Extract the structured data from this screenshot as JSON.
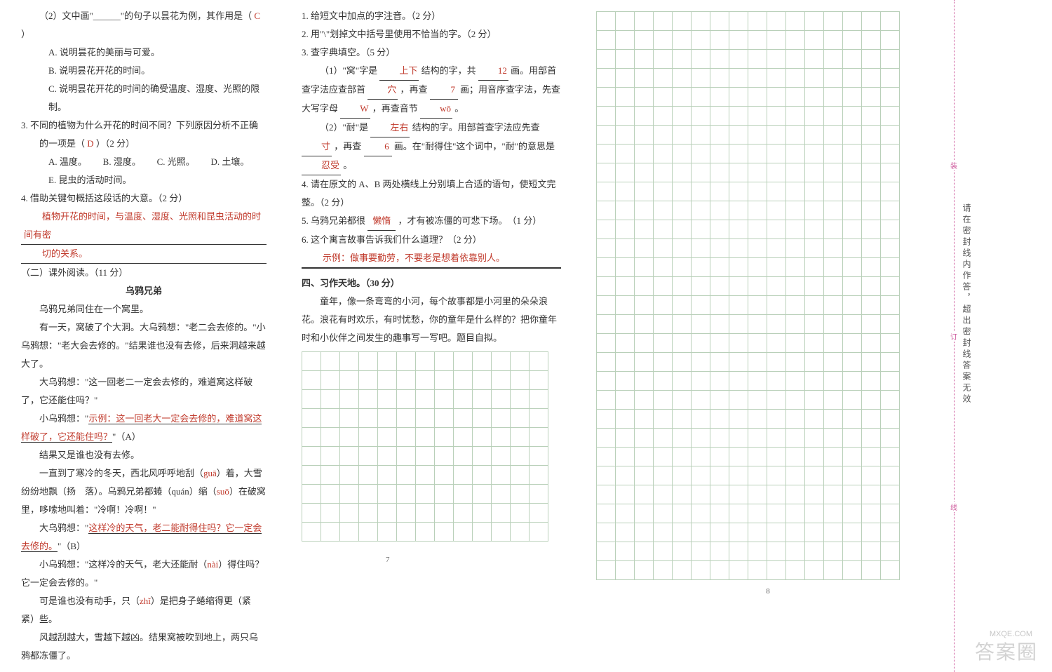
{
  "col1": {
    "q2_stem": "（2）文中画\"______\"的句子以昙花为例，其作用是（",
    "q2_ans": "C",
    "q2_tail": "）",
    "q2_optA": "A. 说明昙花的美丽与可爱。",
    "q2_optB": "B. 说明昙花开花的时间。",
    "q2_optC": "C. 说明昙花开花的时间的确受温度、湿度、光照的限制。",
    "q3_stem1": "3. 不同的植物为什么开花的时间不同？下列原因分析不正确",
    "q3_stem2": "的一项是（",
    "q3_ans": "D",
    "q3_stem3": "）（2 分）",
    "q3_optA": "A. 温度。",
    "q3_optB": "B. 湿度。",
    "q3_optC": "C. 光照。",
    "q3_optD": "D. 土壤。",
    "q3_optE": "E. 昆虫的活动时间。",
    "q4_stem": "4. 借助关键句概括这段话的大意。（2 分）",
    "q4_ans1": "植物开花的时间，与温度、湿度、光照和昆虫活动的时间有密",
    "q4_ans2": "切的关系。",
    "sec2_title": "（二）课外阅读。（11 分）",
    "story_title": "乌鸦兄弟",
    "p1": "乌鸦兄弟同住在一个窝里。",
    "p2": "有一天，窝破了个大洞。大乌鸦想：\"老二会去修的。\"小乌鸦想：\"老大会去修的。\"结果谁也没有去修，后来洞越来越大了。",
    "p3": "大乌鸦想：\"这一回老二一定会去修的，难道窝这样破了，它还能住吗？\"",
    "p4_lead": "小乌鸦想：\"",
    "p4_ans": "示例：这一回老大一定会去修的，难道窝这样破了，它还能住吗？",
    "p4_tail": "\"（A）",
    "p5": "结果又是谁也没有去修。",
    "p6a": "一直到了寒冷的冬天，西北风呼呼地刮（",
    "p6_ans1": "guā",
    "p6b": "）着，大雪纷纷地飘（扬　落）。乌鸦兄弟都蜷（quán）缩（",
    "p6_ans2": "suō",
    "p6c": "）在破窝里，哆嗦地叫着：\"冷啊！冷啊！\"",
    "p7_lead": "大乌鸦想：\"",
    "p7_ans": "这样冷的天气，老二能耐得住吗？它一定会去修的。",
    "p7_tail": "\"（B）",
    "p8a": "小乌鸦想：\"这样冷的天气，老大还能耐（",
    "p8_ans": "nài",
    "p8b": "）得住吗？它一定会去修的。\"",
    "p9a": "可是谁也没有动手，只（",
    "p9_ans": "zhǐ",
    "p9b": "）是把身子蜷缩得更（紧　紧）些。",
    "p10": "风越刮越大，雪越下越凶。结果窝被吹到地上，两只乌鸦都冻僵了。"
  },
  "col2": {
    "q1": "1. 给短文中加点的字注音。（2 分）",
    "q2": "2. 用\"\\\"划掉文中括号里使用不恰当的字。（2 分）",
    "q3_title": "3. 查字典填空。（5 分）",
    "q3_1a": "（1）\"窝\"字是",
    "q3_1_ans1": "上下",
    "q3_1b": "结构的字，共",
    "q3_1_ans2": "12",
    "q3_1c": "画。用部首查字法应查部首",
    "q3_1_ans3": "穴",
    "q3_1d": "，再查",
    "q3_1_ans4": "7",
    "q3_1e": "画；用音序查字法，先查大写字母",
    "q3_1_ans5": "W",
    "q3_1f": "，再查音节",
    "q3_1_ans6": "wō",
    "q3_1g": "。",
    "q3_2a": "（2）\"耐\"是",
    "q3_2_ans1": "左右",
    "q3_2b": "结构的字。用部首查字法应先查",
    "q3_2_ans2": "寸",
    "q3_2c": "，再查",
    "q3_2_ans3": "6",
    "q3_2d": "画。在\"耐得住\"这个词中，\"耐\"的意思是",
    "q3_2_ans4": "忍受",
    "q3_2e": "。",
    "q4": "4. 请在原文的 A、B 两处横线上分别填上合适的语句，使短文完整。（2 分）",
    "q5a": "5. 乌鸦兄弟都很",
    "q5_ans": "懒惰",
    "q5b": "，才有被冻僵的可悲下场。　（1 分）",
    "q6": "6. 这个寓言故事告诉我们什么道理？（2 分）",
    "q6_ans": "示例：做事要勤劳，不要老是想着依靠别人。",
    "sec4_title": "四、习作天地。（30 分）",
    "essay_prompt": "童年，像一条弯弯的小河，每个故事都是小河里的朵朵浪花。浪花有时欢乐，有时忧愁，你的童年是什么样的？把你童年时和小伙伴之间发生的趣事写一写吧。题目自拟。",
    "page_left": "7",
    "page_right": "8",
    "grid": {
      "cols": 13,
      "rows": 10,
      "cell_size": 28,
      "border_color": "#b9d0b9"
    }
  },
  "col3": {
    "grid": {
      "cols": 16,
      "rows": 30,
      "cell_size": 28,
      "border_color": "#b9d0b9"
    }
  },
  "side": {
    "vtext": "请在密封线内作答，超出密封线答案无效",
    "markers": [
      "装",
      "订",
      "线"
    ]
  },
  "watermark": {
    "big": "答案圈",
    "small": "MXQE.COM"
  },
  "colors": {
    "answer": "#c0392b",
    "text": "#333",
    "grid_border": "#b9d0b9",
    "seal_line": "#c59"
  }
}
